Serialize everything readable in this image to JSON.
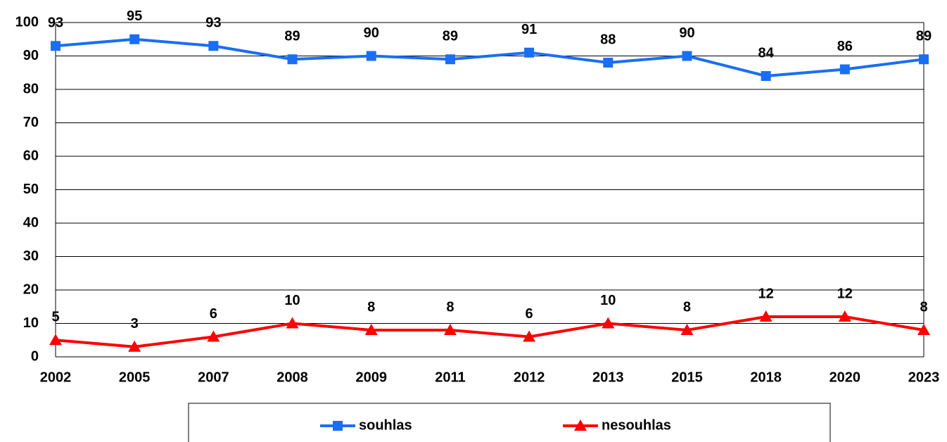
{
  "chart_data": {
    "type": "line",
    "categories": [
      "2002",
      "2005",
      "2007",
      "2008",
      "2009",
      "2011",
      "2012",
      "2013",
      "2015",
      "2018",
      "2020",
      "2023"
    ],
    "series": [
      {
        "name": "souhlas",
        "color": "#1a6ef5",
        "marker": "square",
        "values": [
          93,
          95,
          93,
          89,
          90,
          89,
          91,
          88,
          90,
          84,
          86,
          89
        ]
      },
      {
        "name": "nesouhlas",
        "color": "#ff0000",
        "marker": "triangle",
        "values": [
          5,
          3,
          6,
          10,
          8,
          8,
          6,
          10,
          8,
          12,
          12,
          8
        ]
      }
    ],
    "ylim": [
      0,
      100
    ],
    "yticks": [
      0,
      10,
      20,
      30,
      40,
      50,
      60,
      70,
      80,
      90,
      100
    ],
    "grid": true,
    "legend": "bottom"
  }
}
